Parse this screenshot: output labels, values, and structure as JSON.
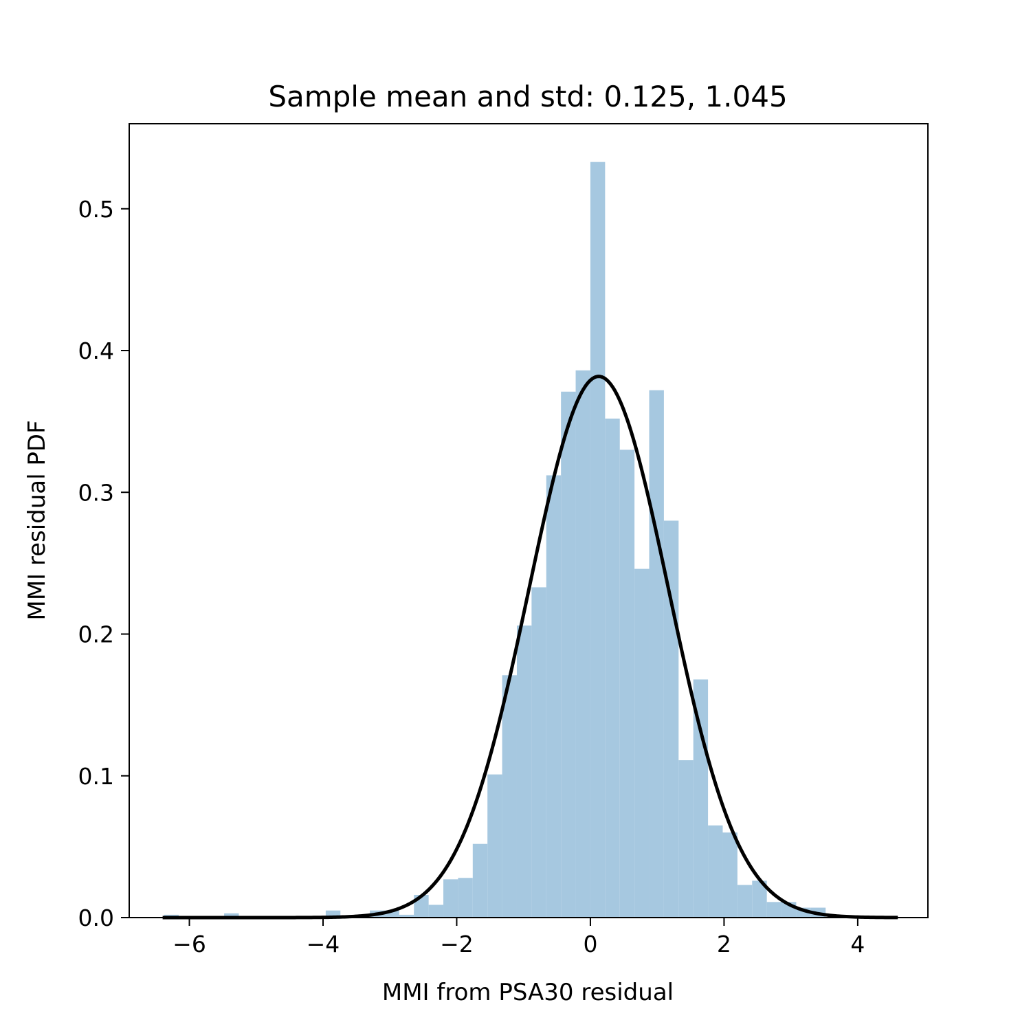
{
  "chart_data": {
    "type": "bar",
    "title": "Sample mean and std: 0.125, 1.045",
    "xlabel": "MMI from PSA30 residual",
    "ylabel": "MMI residual PDF",
    "xlim": [
      -6.9,
      5.05
    ],
    "ylim": [
      0,
      0.56
    ],
    "x_ticks": [
      -6,
      -4,
      -2,
      0,
      2,
      4
    ],
    "y_ticks": [
      0.0,
      0.1,
      0.2,
      0.3,
      0.4,
      0.5
    ],
    "x_tick_labels": [
      "−6",
      "−4",
      "−2",
      "0",
      "2",
      "4"
    ],
    "y_tick_labels": [
      "0.0",
      "0.1",
      "0.2",
      "0.3",
      "0.4",
      "0.5"
    ],
    "grid": false,
    "bar_color": "#a6c8e0",
    "curve_color": "#000000",
    "histogram": {
      "bin_width": 0.22,
      "bins": [
        {
          "left": -6.38,
          "value": 0.002
        },
        {
          "left": -5.48,
          "value": 0.003
        },
        {
          "left": -3.96,
          "value": 0.005
        },
        {
          "left": -3.3,
          "value": 0.005
        },
        {
          "left": -3.08,
          "value": 0.005
        },
        {
          "left": -2.86,
          "value": 0.002
        },
        {
          "left": -2.64,
          "value": 0.004
        },
        {
          "left": -2.64,
          "value": 0.016
        },
        {
          "left": -2.42,
          "value": 0.009
        },
        {
          "left": -2.2,
          "value": 0.027
        },
        {
          "left": -1.98,
          "value": 0.028
        },
        {
          "left": -1.76,
          "value": 0.052
        },
        {
          "left": -1.54,
          "value": 0.101
        },
        {
          "left": -1.32,
          "value": 0.171
        },
        {
          "left": -1.1,
          "value": 0.206
        },
        {
          "left": -0.88,
          "value": 0.233
        },
        {
          "left": -0.66,
          "value": 0.312
        },
        {
          "left": -0.44,
          "value": 0.371
        },
        {
          "left": -0.22,
          "value": 0.386
        },
        {
          "left": 0.0,
          "value": 0.533
        },
        {
          "left": 0.22,
          "value": 0.352
        },
        {
          "left": 0.44,
          "value": 0.33
        },
        {
          "left": 0.66,
          "value": 0.246
        },
        {
          "left": 0.88,
          "value": 0.372
        },
        {
          "left": 1.1,
          "value": 0.28
        },
        {
          "left": 1.32,
          "value": 0.111
        },
        {
          "left": 1.54,
          "value": 0.168
        },
        {
          "left": 1.76,
          "value": 0.065
        },
        {
          "left": 1.98,
          "value": 0.06
        },
        {
          "left": 2.2,
          "value": 0.023
        },
        {
          "left": 2.42,
          "value": 0.026
        },
        {
          "left": 2.64,
          "value": 0.011
        },
        {
          "left": 2.86,
          "value": 0.011
        },
        {
          "left": 3.08,
          "value": 0.007
        },
        {
          "left": 3.3,
          "value": 0.007
        }
      ]
    },
    "normal_fit": {
      "mean": 0.125,
      "std": 1.045,
      "x_range": [
        -6.4,
        4.6
      ]
    }
  }
}
